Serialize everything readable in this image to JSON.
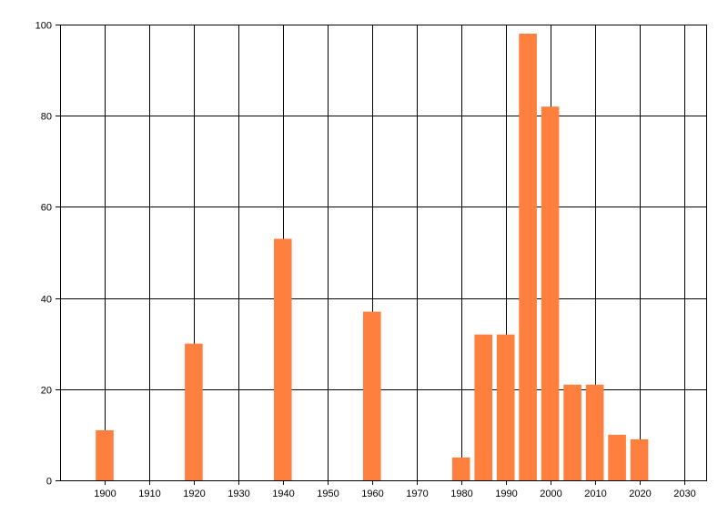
{
  "chart_data": {
    "type": "bar",
    "title": "",
    "xlabel": "",
    "ylabel": "",
    "x": [
      1900,
      1920,
      1940,
      1960,
      1980,
      1985,
      1990,
      1995,
      2000,
      2005,
      2010,
      2015,
      2020
    ],
    "values": [
      11,
      30,
      53,
      37,
      5,
      32,
      32,
      98,
      82,
      21,
      21,
      10,
      9
    ],
    "bar_width_years": 4,
    "xlim": [
      1890,
      2035
    ],
    "ylim": [
      0,
      100
    ],
    "xticks": [
      1900,
      1910,
      1920,
      1930,
      1940,
      1950,
      1960,
      1970,
      1980,
      1990,
      2000,
      2010,
      2020,
      2030
    ],
    "yticks": [
      0,
      20,
      40,
      60,
      80,
      100
    ],
    "grid": true,
    "legend": "none",
    "colors": {
      "bar": "#FF7F3F",
      "grid": "#000000",
      "background": "#FFFFFF"
    }
  }
}
